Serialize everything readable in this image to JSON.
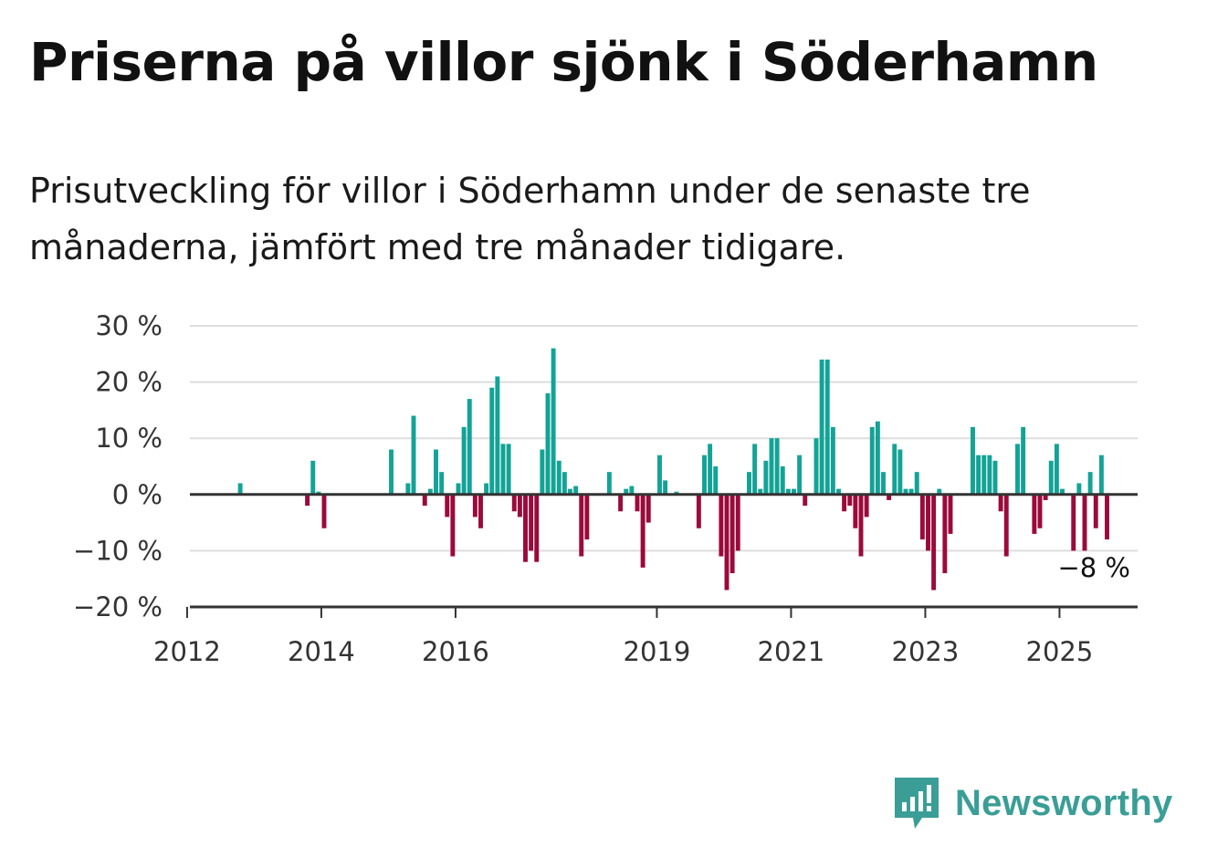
{
  "title": "Priserna på villor sjönk i Söderhamn",
  "subtitle": "Prisutveckling för villor i Söderhamn under de senaste tre månaderna, jämfört med tre månader tidigare.",
  "brand": {
    "name": "Newsworthy",
    "icon": "newsworthy-logo-icon",
    "color": "#3a9e96"
  },
  "chart_data": {
    "type": "bar",
    "x_unit": "month",
    "x_ticks": [
      "2012",
      "2014",
      "2016",
      "2019",
      "2021",
      "2023",
      "2025"
    ],
    "y_ticks": [
      "30 %",
      "20 %",
      "10 %",
      "0 %",
      "−10 %",
      "−20 %"
    ],
    "ylim": [
      -20,
      30
    ],
    "y_tick_values": [
      30,
      20,
      10,
      0,
      -10,
      -20
    ],
    "grid": true,
    "colors": {
      "positive": "#13a396",
      "negative": "#9b0a3a",
      "grid": "#dddddd",
      "axis": "#333333"
    },
    "annotation": {
      "text": "−8 %",
      "x": "2025-05",
      "value": -8
    },
    "series": [
      {
        "values": [
          [
            "2012-10",
            2
          ],
          [
            "2013-10",
            -2
          ],
          [
            "2013-11",
            6
          ],
          [
            "2013-12",
            0.5
          ],
          [
            "2014-01",
            -6
          ],
          [
            "2015-01",
            8
          ],
          [
            "2015-04",
            2
          ],
          [
            "2015-05",
            14
          ],
          [
            "2015-07",
            -2
          ],
          [
            "2015-08",
            1
          ],
          [
            "2015-09",
            8
          ],
          [
            "2015-10",
            4
          ],
          [
            "2015-11",
            -4
          ],
          [
            "2015-12",
            -11
          ],
          [
            "2016-01",
            2
          ],
          [
            "2016-02",
            12
          ],
          [
            "2016-03",
            17
          ],
          [
            "2016-04",
            -4
          ],
          [
            "2016-05",
            -6
          ],
          [
            "2016-06",
            2
          ],
          [
            "2016-07",
            19
          ],
          [
            "2016-08",
            21
          ],
          [
            "2016-09",
            9
          ],
          [
            "2016-10",
            9
          ],
          [
            "2016-11",
            -3
          ],
          [
            "2016-12",
            -4
          ],
          [
            "2017-01",
            -12
          ],
          [
            "2017-02",
            -10
          ],
          [
            "2017-03",
            -12
          ],
          [
            "2017-04",
            8
          ],
          [
            "2017-05",
            18
          ],
          [
            "2017-06",
            26
          ],
          [
            "2017-07",
            6
          ],
          [
            "2017-08",
            4
          ],
          [
            "2017-09",
            1
          ],
          [
            "2017-10",
            1.5
          ],
          [
            "2017-11",
            -11
          ],
          [
            "2017-12",
            -8
          ],
          [
            "2018-04",
            4
          ],
          [
            "2018-06",
            -3
          ],
          [
            "2018-07",
            1
          ],
          [
            "2018-08",
            1.5
          ],
          [
            "2018-09",
            -3
          ],
          [
            "2018-10",
            -13
          ],
          [
            "2018-11",
            -5
          ],
          [
            "2019-01",
            7
          ],
          [
            "2019-02",
            2.5
          ],
          [
            "2019-04",
            0.5
          ],
          [
            "2019-08",
            -6
          ],
          [
            "2019-09",
            7
          ],
          [
            "2019-10",
            9
          ],
          [
            "2019-11",
            5
          ],
          [
            "2019-12",
            -11
          ],
          [
            "2020-01",
            -17
          ],
          [
            "2020-02",
            -14
          ],
          [
            "2020-03",
            -10
          ],
          [
            "2020-05",
            4
          ],
          [
            "2020-06",
            9
          ],
          [
            "2020-07",
            1
          ],
          [
            "2020-08",
            6
          ],
          [
            "2020-09",
            10
          ],
          [
            "2020-10",
            10
          ],
          [
            "2020-11",
            5
          ],
          [
            "2020-12",
            1
          ],
          [
            "2021-01",
            1
          ],
          [
            "2021-02",
            7
          ],
          [
            "2021-03",
            -2
          ],
          [
            "2021-05",
            10
          ],
          [
            "2021-06",
            24
          ],
          [
            "2021-07",
            24
          ],
          [
            "2021-08",
            12
          ],
          [
            "2021-09",
            1
          ],
          [
            "2021-10",
            -3
          ],
          [
            "2021-11",
            -2
          ],
          [
            "2021-12",
            -6
          ],
          [
            "2022-01",
            -11
          ],
          [
            "2022-02",
            -4
          ],
          [
            "2022-03",
            12
          ],
          [
            "2022-04",
            13
          ],
          [
            "2022-05",
            4
          ],
          [
            "2022-06",
            -1
          ],
          [
            "2022-07",
            9
          ],
          [
            "2022-08",
            8
          ],
          [
            "2022-09",
            1
          ],
          [
            "2022-10",
            1
          ],
          [
            "2022-11",
            4
          ],
          [
            "2022-12",
            -8
          ],
          [
            "2023-01",
            -10
          ],
          [
            "2023-02",
            -17
          ],
          [
            "2023-03",
            1
          ],
          [
            "2023-04",
            -14
          ],
          [
            "2023-05",
            -7
          ],
          [
            "2023-09",
            12
          ],
          [
            "2023-10",
            7
          ],
          [
            "2023-11",
            7
          ],
          [
            "2023-12",
            7
          ],
          [
            "2024-01",
            6
          ],
          [
            "2024-02",
            -3
          ],
          [
            "2024-03",
            -11
          ],
          [
            "2024-05",
            9
          ],
          [
            "2024-06",
            12
          ],
          [
            "2024-08",
            -7
          ],
          [
            "2024-09",
            -6
          ],
          [
            "2024-10",
            -1
          ],
          [
            "2024-11",
            6
          ],
          [
            "2024-12",
            9
          ],
          [
            "2025-01",
            1
          ],
          [
            "2025-03",
            -10
          ],
          [
            "2025-04",
            2
          ],
          [
            "2025-05",
            -10
          ],
          [
            "2025-06",
            4
          ],
          [
            "2025-07",
            -6
          ],
          [
            "2025-08",
            7
          ],
          [
            "2025-09",
            -8
          ]
        ]
      }
    ]
  }
}
